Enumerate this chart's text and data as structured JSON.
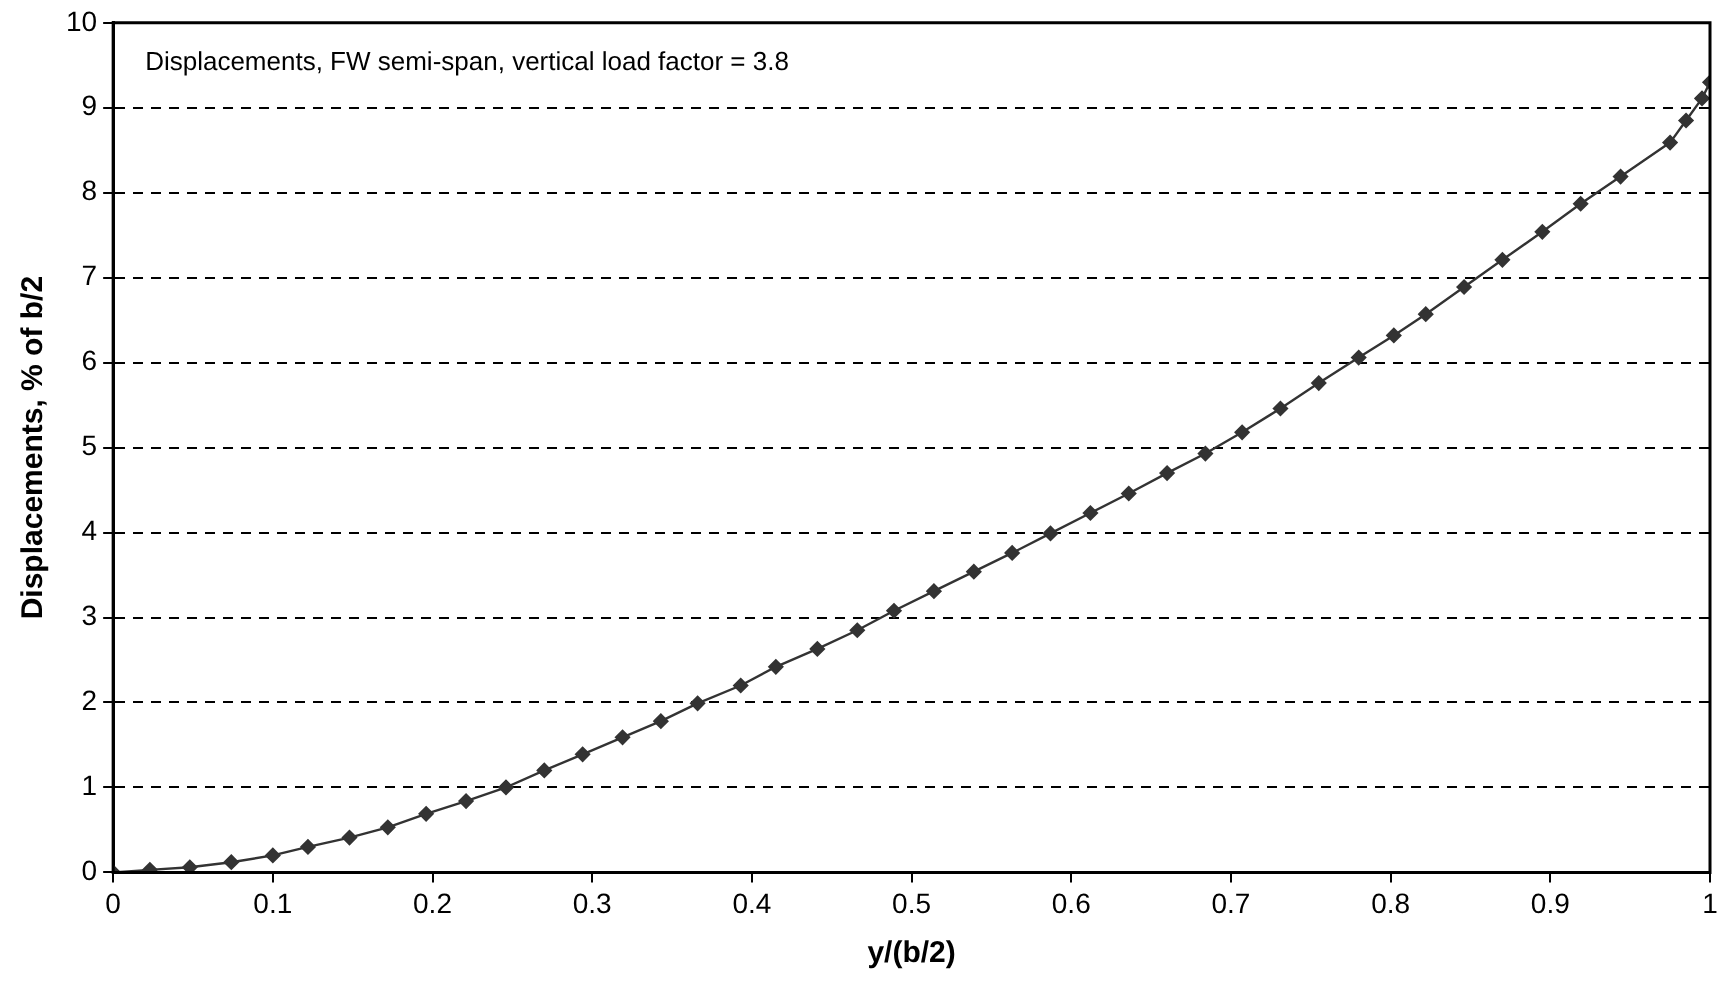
{
  "chart_data": {
    "type": "line",
    "xlabel": "y/(b/2)",
    "ylabel": "Displacements, % of b/2",
    "annotations": [
      "Displacements, FW semi-span, vertical load factor = 3.8"
    ],
    "x": [
      0,
      0.023,
      0.048,
      0.074,
      0.1,
      0.122,
      0.148,
      0.172,
      0.196,
      0.221,
      0.246,
      0.27,
      0.294,
      0.319,
      0.343,
      0.366,
      0.393,
      0.415,
      0.441,
      0.466,
      0.489,
      0.514,
      0.539,
      0.563,
      0.587,
      0.612,
      0.636,
      0.66,
      0.684,
      0.707,
      0.731,
      0.755,
      0.78,
      0.802,
      0.822,
      0.846,
      0.87,
      0.895,
      0.919,
      0.944,
      0.975,
      0.985,
      0.995,
      1.0
    ],
    "series": [
      {
        "color": "#333333",
        "values": [
          0,
          0.03,
          0.06,
          0.12,
          0.2,
          0.3,
          0.41,
          0.53,
          0.69,
          0.84,
          1.0,
          1.2,
          1.39,
          1.59,
          1.78,
          1.99,
          2.2,
          2.42,
          2.63,
          2.85,
          3.08,
          3.31,
          3.54,
          3.76,
          3.99,
          4.23,
          4.46,
          4.7,
          4.93,
          5.18,
          5.46,
          5.76,
          6.06,
          6.32,
          6.57,
          6.89,
          7.21,
          7.54,
          7.87,
          8.19,
          8.59,
          8.85,
          9.11,
          9.3
        ]
      }
    ],
    "xlim": [
      0,
      1
    ],
    "xticks": [
      0,
      0.1,
      0.2,
      0.3,
      0.4,
      0.5,
      0.6,
      0.7,
      0.8,
      0.9,
      1
    ],
    "ylim": [
      0,
      10
    ],
    "yticks": [
      0,
      1,
      2,
      3,
      4,
      5,
      6,
      7,
      8,
      9,
      10
    ],
    "grid": "y",
    "legend": false,
    "marker": "diamond",
    "line_style": "solid"
  }
}
